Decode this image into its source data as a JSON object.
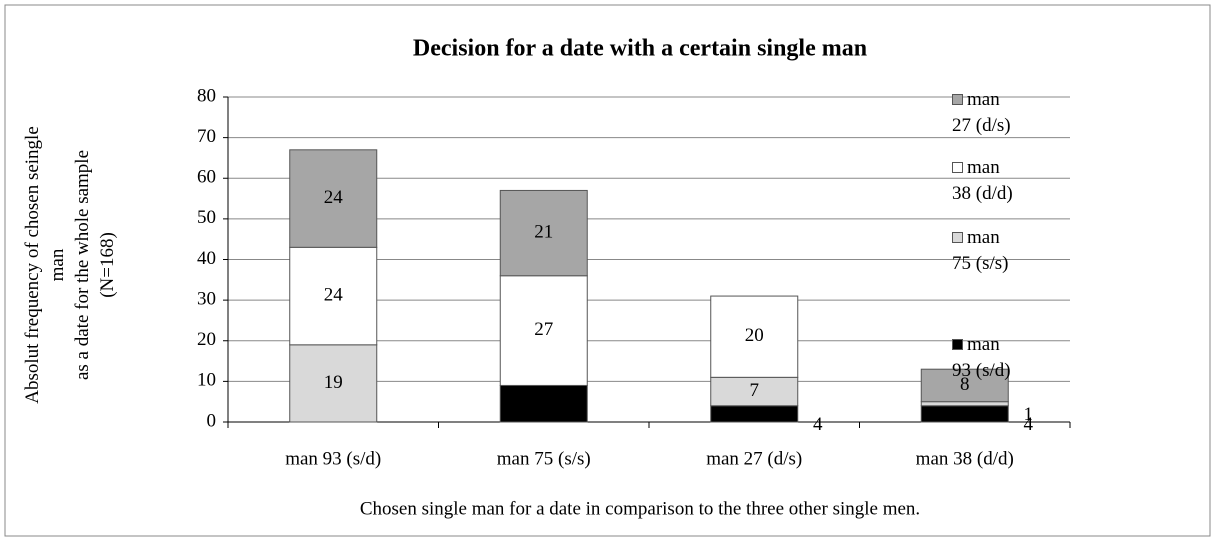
{
  "chart_data": {
    "type": "stacked_bar",
    "title": "Decision for a date with a certain single man",
    "xlabel": "Chosen single man for a date in comparison to the three other single men.",
    "ylabel": [
      "Absolut frequency of chosen seingle",
      "man",
      "as a date for the whole sample",
      "(N=168)"
    ],
    "categories": [
      "man 93 (s/d)",
      "man 75 (s/s)",
      "man 27 (d/s)",
      "man 38 (d/d)"
    ],
    "series": [
      {
        "name": "man 93 (s/d)",
        "color": "#000000",
        "values": [
          null,
          9,
          4,
          4
        ]
      },
      {
        "name": "man 75 (s/s)",
        "color": "#d9d9d9",
        "values": [
          19,
          null,
          7,
          1
        ]
      },
      {
        "name": "man 38 (d/d)",
        "color": "#ffffff",
        "values": [
          24,
          27,
          20,
          null
        ]
      },
      {
        "name": "man 27 (d/s)",
        "color": "#a6a6a6",
        "values": [
          24,
          21,
          null,
          8
        ]
      }
    ],
    "ylim": [
      0,
      80
    ],
    "yticks": [
      0,
      10,
      20,
      30,
      40,
      50,
      60,
      70,
      80
    ],
    "grid": true,
    "legend": "right"
  }
}
